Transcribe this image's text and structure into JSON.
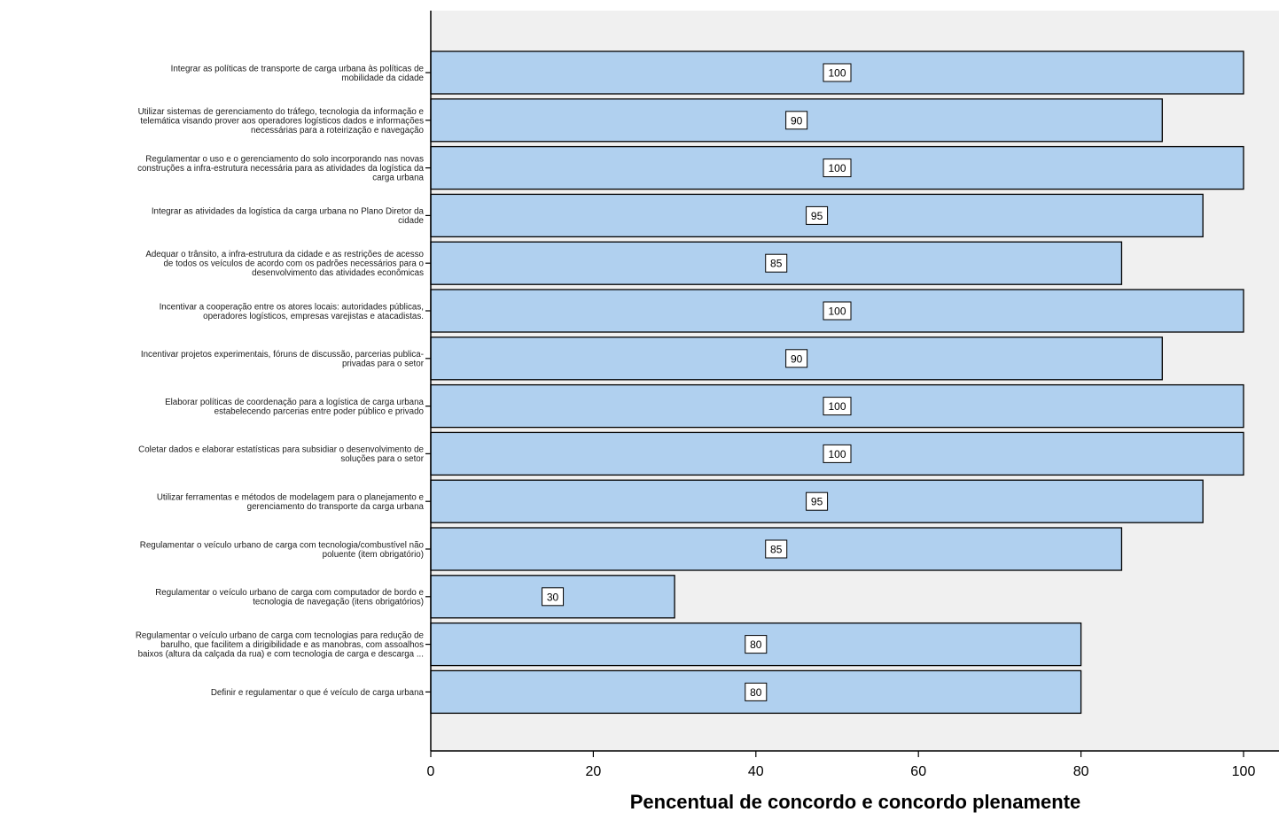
{
  "chart_data": {
    "type": "bar",
    "orientation": "horizontal",
    "title": "",
    "xlabel": "Pencentual de concordo e concordo plenamente",
    "ylabel": "",
    "xlim": [
      0,
      100
    ],
    "x_ticks": [
      "0",
      "20",
      "40",
      "60",
      "80",
      "100"
    ],
    "grid": false,
    "legend": "none",
    "colors": {
      "bar_fill": "#b0d0ef",
      "bar_stroke": "#000000",
      "plot_background": "#f0f0f0",
      "label_box": "#ffffff"
    },
    "categories": [
      [
        "Integrar as políticas de transporte de carga urbana às políticas de",
        "mobilidade da cidade"
      ],
      [
        "Utilizar sistemas de gerenciamento do tráfego, tecnologia da informação e",
        "telemática visando prover aos operadores logísticos dados e informações",
        "necessárias para a roteirização e navegação"
      ],
      [
        "Regulamentar o uso e o gerenciamento do solo incorporando nas novas",
        "construções a infra-estrutura necessária para as atividades da logística da",
        "carga urbana"
      ],
      [
        "Integrar as atividades da logística da carga urbana no Plano Diretor da",
        "cidade"
      ],
      [
        "Adequar o trânsito, a infra-estrutura da cidade e as restrições de acesso",
        "de todos os veículos de acordo com os padrões necessários para o",
        "desenvolvimento das atividades econômicas"
      ],
      [
        "Incentivar a cooperação entre os atores locais: autoridades públicas,",
        "operadores logísticos, empresas varejistas e atacadistas."
      ],
      [
        "Incentivar projetos experimentais, fóruns de discussão, parcerias publica-",
        "privadas para o setor"
      ],
      [
        "Elaborar políticas de coordenação para a logística de carga urbana",
        "estabelecendo parcerias entre poder público e privado"
      ],
      [
        "Coletar dados e elaborar estatísticas para subsidiar o desenvolvimento de",
        "soluções para o setor"
      ],
      [
        "Utilizar ferramentas e métodos de modelagem para o planejamento e",
        "gerenciamento do transporte da carga urbana"
      ],
      [
        "Regulamentar o veículo urbano de carga com tecnologia/combustível não",
        "poluente (item obrigatório)"
      ],
      [
        "Regulamentar o veículo urbano de carga com computador de bordo e",
        "tecnologia de navegação (itens obrigatórios)"
      ],
      [
        "Regulamentar o veículo urbano de carga com tecnologias para redução de",
        "barulho, que facilitem a dirigibilidade e as manobras, com assoalhos",
        "baixos (altura da calçada da rua) e com tecnologia de carga e descarga ..."
      ],
      [
        "Definir e regulamentar o que é veículo de carga urbana"
      ]
    ],
    "values": [
      100,
      90,
      100,
      95,
      85,
      100,
      90,
      100,
      100,
      95,
      85,
      30,
      80,
      80
    ]
  }
}
